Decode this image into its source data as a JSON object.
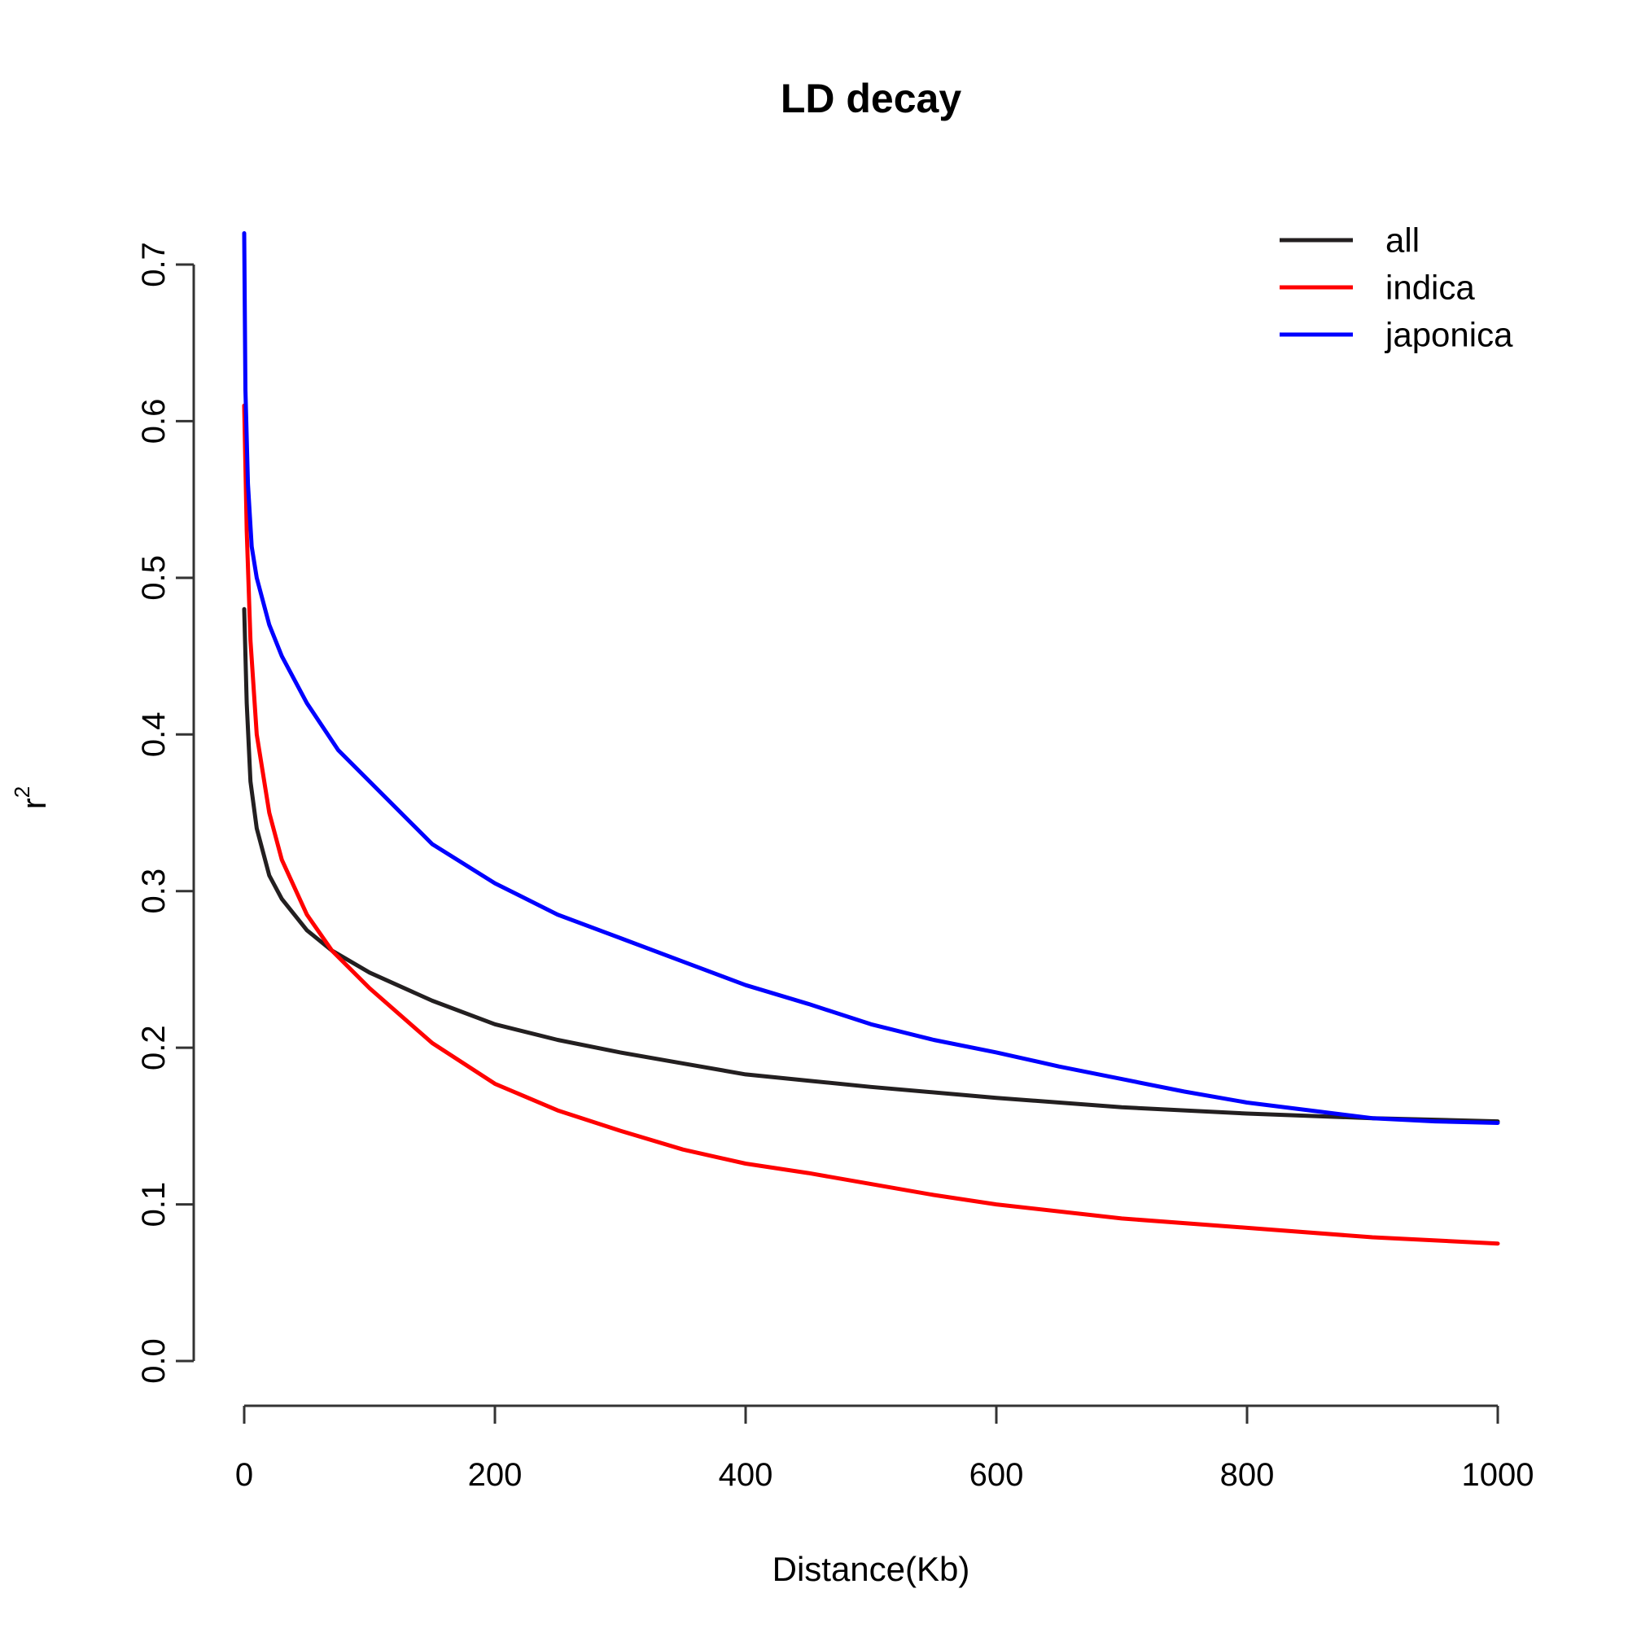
{
  "chart_data": {
    "type": "line",
    "title": "LD decay",
    "xlabel": "Distance(Kb)",
    "ylabel": "r",
    "ylabel_superscript": "2",
    "xlim": [
      0,
      1000
    ],
    "ylim": [
      0,
      0.7
    ],
    "xticks": [
      0,
      200,
      400,
      600,
      800,
      1000
    ],
    "yticks": [
      0.0,
      0.1,
      0.2,
      0.3,
      0.4,
      0.5,
      0.6,
      0.7
    ],
    "xtick_labels": [
      "0",
      "200",
      "400",
      "600",
      "800",
      "1000"
    ],
    "ytick_labels": [
      "0.0",
      "0.1",
      "0.2",
      "0.3",
      "0.4",
      "0.5",
      "0.6",
      "0.7"
    ],
    "grid": false,
    "legend_position": "top-right",
    "series": [
      {
        "name": "all",
        "color": "#231F20",
        "points": [
          [
            0,
            0.48
          ],
          [
            2,
            0.42
          ],
          [
            5,
            0.37
          ],
          [
            10,
            0.34
          ],
          [
            20,
            0.31
          ],
          [
            30,
            0.295
          ],
          [
            50,
            0.275
          ],
          [
            70,
            0.262
          ],
          [
            100,
            0.248
          ],
          [
            150,
            0.23
          ],
          [
            200,
            0.215
          ],
          [
            250,
            0.205
          ],
          [
            300,
            0.197
          ],
          [
            350,
            0.19
          ],
          [
            400,
            0.183
          ],
          [
            450,
            0.179
          ],
          [
            500,
            0.175
          ],
          [
            600,
            0.168
          ],
          [
            700,
            0.162
          ],
          [
            800,
            0.158
          ],
          [
            900,
            0.155
          ],
          [
            1000,
            0.153
          ]
        ]
      },
      {
        "name": "indica",
        "color": "#FF0000",
        "points": [
          [
            0,
            0.61
          ],
          [
            2,
            0.53
          ],
          [
            5,
            0.46
          ],
          [
            10,
            0.4
          ],
          [
            20,
            0.35
          ],
          [
            30,
            0.32
          ],
          [
            50,
            0.285
          ],
          [
            70,
            0.262
          ],
          [
            100,
            0.238
          ],
          [
            150,
            0.203
          ],
          [
            200,
            0.177
          ],
          [
            250,
            0.16
          ],
          [
            300,
            0.147
          ],
          [
            350,
            0.135
          ],
          [
            400,
            0.126
          ],
          [
            450,
            0.12
          ],
          [
            500,
            0.113
          ],
          [
            550,
            0.106
          ],
          [
            600,
            0.1
          ],
          [
            700,
            0.091
          ],
          [
            800,
            0.085
          ],
          [
            900,
            0.079
          ],
          [
            1000,
            0.075
          ]
        ]
      },
      {
        "name": "japonica",
        "color": "#0000FF",
        "points": [
          [
            0,
            0.72
          ],
          [
            1,
            0.62
          ],
          [
            3,
            0.56
          ],
          [
            6,
            0.52
          ],
          [
            10,
            0.5
          ],
          [
            20,
            0.47
          ],
          [
            30,
            0.45
          ],
          [
            50,
            0.42
          ],
          [
            75,
            0.39
          ],
          [
            100,
            0.37
          ],
          [
            150,
            0.33
          ],
          [
            200,
            0.305
          ],
          [
            250,
            0.285
          ],
          [
            300,
            0.27
          ],
          [
            350,
            0.255
          ],
          [
            400,
            0.24
          ],
          [
            450,
            0.228
          ],
          [
            500,
            0.215
          ],
          [
            550,
            0.205
          ],
          [
            600,
            0.197
          ],
          [
            650,
            0.188
          ],
          [
            700,
            0.18
          ],
          [
            750,
            0.172
          ],
          [
            800,
            0.165
          ],
          [
            850,
            0.16
          ],
          [
            900,
            0.155
          ],
          [
            950,
            0.153
          ],
          [
            1000,
            0.152
          ]
        ]
      }
    ]
  }
}
